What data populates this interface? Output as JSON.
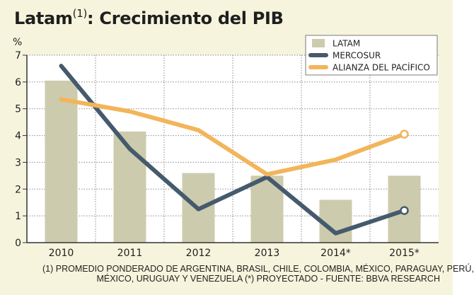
{
  "title": {
    "main": "Latam",
    "superscript": "(1)",
    "rest": ": Crecimiento del PIB"
  },
  "footnote": {
    "line1": "(1) PROMEDIO PONDERADO DE ARGENTINA, BRASIL, CHILE, COLOMBIA, MÉXICO, PARAGUAY, PERÚ,",
    "line2": "MÉXICO, URUGUAY Y VENEZUELA  (*) PROYECTADO - FUENTE: BBVA RESEARCH"
  },
  "chart_data": {
    "type": "bar",
    "title": "Latam(1): Crecimiento del PIB",
    "ylabel": "%",
    "xlabel": "",
    "ylim": [
      0,
      7
    ],
    "yticks": [
      "0",
      "1",
      "2",
      "3",
      "4",
      "5",
      "6",
      "7"
    ],
    "categories": [
      "2010",
      "2011",
      "2012",
      "2013",
      "2014*",
      "2015*"
    ],
    "grid": true,
    "legend_position": "top-right",
    "series": [
      {
        "name": "LATAM",
        "kind": "bar",
        "color": "#cdcbae",
        "values": [
          6.05,
          4.15,
          2.6,
          2.5,
          1.6,
          2.5
        ]
      },
      {
        "name": "MERCOSUR",
        "kind": "line",
        "color": "#455a6d",
        "values": [
          6.6,
          3.5,
          1.25,
          2.45,
          0.35,
          1.2
        ]
      },
      {
        "name": "ALIANZA DEL PACÍFICO",
        "kind": "line",
        "color": "#f2b55a",
        "values": [
          5.35,
          4.9,
          4.2,
          2.55,
          3.1,
          4.05
        ]
      }
    ]
  }
}
